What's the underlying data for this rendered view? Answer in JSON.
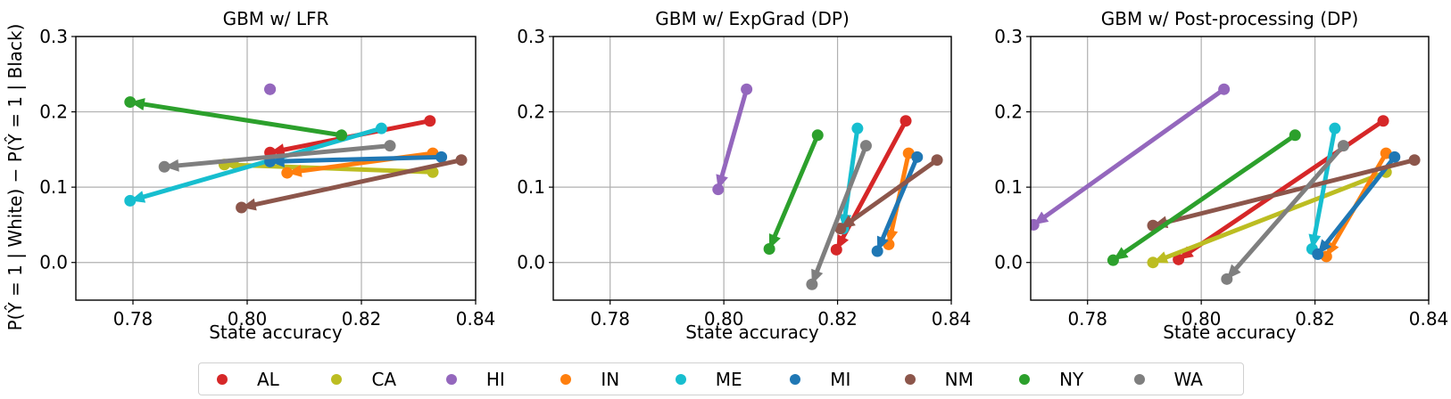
{
  "figure": {
    "ylabel": "P(Ŷ = 1 | White) − P(Ŷ = 1 | Black)",
    "xlabel": "State accuracy"
  },
  "legend": {
    "items": [
      {
        "label": "AL",
        "color": "#d62728"
      },
      {
        "label": "CA",
        "color": "#bcbd22"
      },
      {
        "label": "HI",
        "color": "#9467bd"
      },
      {
        "label": "IN",
        "color": "#ff7f0e"
      },
      {
        "label": "ME",
        "color": "#17becf"
      },
      {
        "label": "MI",
        "color": "#1f77b4"
      },
      {
        "label": "NM",
        "color": "#8c564b"
      },
      {
        "label": "NY",
        "color": "#2ca02c"
      },
      {
        "label": "WA",
        "color": "#7f7f7f"
      }
    ]
  },
  "chart_data": [
    {
      "type": "scatter",
      "title": "GBM w/ LFR",
      "xlabel": "State accuracy",
      "ylabel": "P(Ŷ = 1 | White) − P(Ŷ = 1 | Black)",
      "xlim": [
        0.77,
        0.84
      ],
      "ylim": [
        -0.05,
        0.3
      ],
      "xticks": [
        "0.78",
        "0.80",
        "0.82",
        "0.84"
      ],
      "yticks": [
        "0.0",
        "0.1",
        "0.2",
        "0.3"
      ],
      "grid": true,
      "series": [
        {
          "name": "AL",
          "from": [
            0.832,
            0.188
          ],
          "to": [
            0.804,
            0.146
          ]
        },
        {
          "name": "CA",
          "from": [
            0.8325,
            0.12
          ],
          "to": [
            0.796,
            0.13
          ]
        },
        {
          "name": "HI",
          "from": [
            0.804,
            0.23
          ],
          "to": [
            0.804,
            0.23
          ]
        },
        {
          "name": "IN",
          "from": [
            0.8325,
            0.145
          ],
          "to": [
            0.807,
            0.119
          ]
        },
        {
          "name": "ME",
          "from": [
            0.8235,
            0.178
          ],
          "to": [
            0.7795,
            0.082
          ]
        },
        {
          "name": "MI",
          "from": [
            0.834,
            0.14
          ],
          "to": [
            0.804,
            0.134
          ]
        },
        {
          "name": "NM",
          "from": [
            0.8375,
            0.136
          ],
          "to": [
            0.799,
            0.073
          ]
        },
        {
          "name": "NY",
          "from": [
            0.8165,
            0.169
          ],
          "to": [
            0.7795,
            0.213
          ]
        },
        {
          "name": "WA",
          "from": [
            0.825,
            0.155
          ],
          "to": [
            0.7855,
            0.127
          ]
        }
      ]
    },
    {
      "type": "scatter",
      "title": "GBM w/ ExpGrad (DP)",
      "xlabel": "State accuracy",
      "ylabel": "",
      "xlim": [
        0.77,
        0.84
      ],
      "ylim": [
        -0.05,
        0.3
      ],
      "xticks": [
        "0.78",
        "0.80",
        "0.82",
        "0.84"
      ],
      "yticks": [
        "0.0",
        "0.1",
        "0.2",
        "0.3"
      ],
      "grid": true,
      "series": [
        {
          "name": "AL",
          "from": [
            0.832,
            0.188
          ],
          "to": [
            0.8198,
            0.017
          ]
        },
        {
          "name": "HI",
          "from": [
            0.804,
            0.23
          ],
          "to": [
            0.799,
            0.097
          ]
        },
        {
          "name": "IN",
          "from": [
            0.8325,
            0.145
          ],
          "to": [
            0.829,
            0.024
          ]
        },
        {
          "name": "ME",
          "from": [
            0.8235,
            0.178
          ],
          "to": [
            0.821,
            0.045
          ]
        },
        {
          "name": "MI",
          "from": [
            0.834,
            0.14
          ],
          "to": [
            0.827,
            0.015
          ]
        },
        {
          "name": "NM",
          "from": [
            0.8375,
            0.136
          ],
          "to": [
            0.8205,
            0.045
          ]
        },
        {
          "name": "NY",
          "from": [
            0.8165,
            0.169
          ],
          "to": [
            0.808,
            0.018
          ]
        },
        {
          "name": "WA",
          "from": [
            0.825,
            0.155
          ],
          "to": [
            0.8155,
            -0.029
          ]
        }
      ]
    },
    {
      "type": "scatter",
      "title": "GBM w/ Post-processing (DP)",
      "xlabel": "State accuracy",
      "ylabel": "",
      "xlim": [
        0.77,
        0.84
      ],
      "ylim": [
        -0.05,
        0.3
      ],
      "xticks": [
        "0.78",
        "0.80",
        "0.82",
        "0.84"
      ],
      "yticks": [
        "0.0",
        "0.1",
        "0.2",
        "0.3"
      ],
      "grid": true,
      "series": [
        {
          "name": "AL",
          "from": [
            0.832,
            0.188
          ],
          "to": [
            0.796,
            0.004
          ]
        },
        {
          "name": "CA",
          "from": [
            0.8325,
            0.12
          ],
          "to": [
            0.7915,
            0.0
          ]
        },
        {
          "name": "HI",
          "from": [
            0.804,
            0.23
          ],
          "to": [
            0.7705,
            0.05
          ]
        },
        {
          "name": "IN",
          "from": [
            0.8325,
            0.145
          ],
          "to": [
            0.822,
            0.008
          ]
        },
        {
          "name": "ME",
          "from": [
            0.8235,
            0.178
          ],
          "to": [
            0.8195,
            0.018
          ]
        },
        {
          "name": "MI",
          "from": [
            0.834,
            0.14
          ],
          "to": [
            0.8205,
            0.011
          ]
        },
        {
          "name": "NM",
          "from": [
            0.8375,
            0.136
          ],
          "to": [
            0.7915,
            0.049
          ]
        },
        {
          "name": "NY",
          "from": [
            0.8165,
            0.169
          ],
          "to": [
            0.7845,
            0.003
          ]
        },
        {
          "name": "WA",
          "from": [
            0.825,
            0.155
          ],
          "to": [
            0.8045,
            -0.022
          ]
        }
      ]
    }
  ]
}
